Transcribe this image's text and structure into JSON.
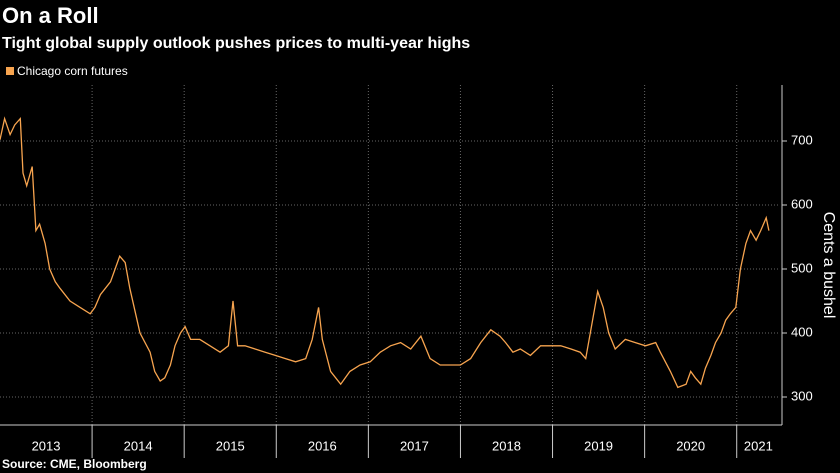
{
  "title": "On a Roll",
  "subtitle": "Tight global supply outlook pushes prices to multi-year highs",
  "source": "Source: CME, Bloomberg",
  "chart_data": {
    "type": "line",
    "y_label": "Cents a bushel",
    "x": [
      2013.0,
      2013.05,
      2013.11,
      2013.16,
      2013.22,
      2013.25,
      2013.29,
      2013.35,
      2013.39,
      2013.43,
      2013.49,
      2013.54,
      2013.6,
      2013.65,
      2013.76,
      2013.87,
      2013.98,
      2014.03,
      2014.09,
      2014.2,
      2014.25,
      2014.3,
      2014.36,
      2014.41,
      2014.52,
      2014.63,
      2014.68,
      2014.74,
      2014.79,
      2014.85,
      2014.9,
      2014.96,
      2015.01,
      2015.07,
      2015.17,
      2015.28,
      2015.39,
      2015.48,
      2015.53,
      2015.58,
      2015.66,
      2015.77,
      2015.88,
      2015.99,
      2016.1,
      2016.21,
      2016.32,
      2016.39,
      2016.46,
      2016.5,
      2016.59,
      2016.7,
      2016.8,
      2016.91,
      2017.02,
      2017.13,
      2017.24,
      2017.35,
      2017.46,
      2017.57,
      2017.67,
      2017.78,
      2017.89,
      2018.0,
      2018.11,
      2018.22,
      2018.33,
      2018.43,
      2018.49,
      2018.57,
      2018.65,
      2018.76,
      2018.87,
      2018.98,
      2019.09,
      2019.2,
      2019.3,
      2019.36,
      2019.41,
      2019.49,
      2019.55,
      2019.61,
      2019.68,
      2019.79,
      2019.9,
      2020.01,
      2020.12,
      2020.17,
      2020.28,
      2020.36,
      2020.45,
      2020.5,
      2020.55,
      2020.61,
      2020.66,
      2020.72,
      2020.77,
      2020.83,
      2020.88,
      2020.93,
      2020.99,
      2021.04,
      2021.1,
      2021.15,
      2021.21,
      2021.26,
      2021.32,
      2021.35
    ],
    "series": [
      {
        "name": "Chicago corn futures",
        "color": "#f7a44f",
        "values": [
          702,
          735,
          710,
          725,
          735,
          650,
          630,
          660,
          560,
          570,
          540,
          500,
          480,
          470,
          450,
          440,
          430,
          440,
          460,
          480,
          500,
          520,
          510,
          470,
          400,
          370,
          340,
          325,
          330,
          350,
          380,
          400,
          410,
          390,
          390,
          380,
          370,
          380,
          450,
          380,
          380,
          375,
          370,
          365,
          360,
          355,
          360,
          390,
          440,
          390,
          340,
          320,
          340,
          350,
          355,
          370,
          380,
          385,
          375,
          395,
          360,
          350,
          350,
          350,
          360,
          385,
          405,
          395,
          385,
          370,
          375,
          365,
          380,
          380,
          380,
          375,
          370,
          360,
          400,
          465,
          440,
          400,
          375,
          390,
          385,
          380,
          385,
          370,
          340,
          315,
          320,
          340,
          330,
          320,
          345,
          365,
          385,
          400,
          420,
          430,
          440,
          500,
          540,
          560,
          545,
          560,
          580,
          560
        ]
      }
    ],
    "xlim": [
      2013,
      2021.47
    ],
    "xticks": [
      2013,
      2014,
      2015,
      2016,
      2017,
      2018,
      2019,
      2020,
      2021
    ],
    "ylim": [
      256.25,
      787.5
    ],
    "yticks": [
      300,
      400,
      500,
      600,
      700
    ],
    "grid": true
  }
}
